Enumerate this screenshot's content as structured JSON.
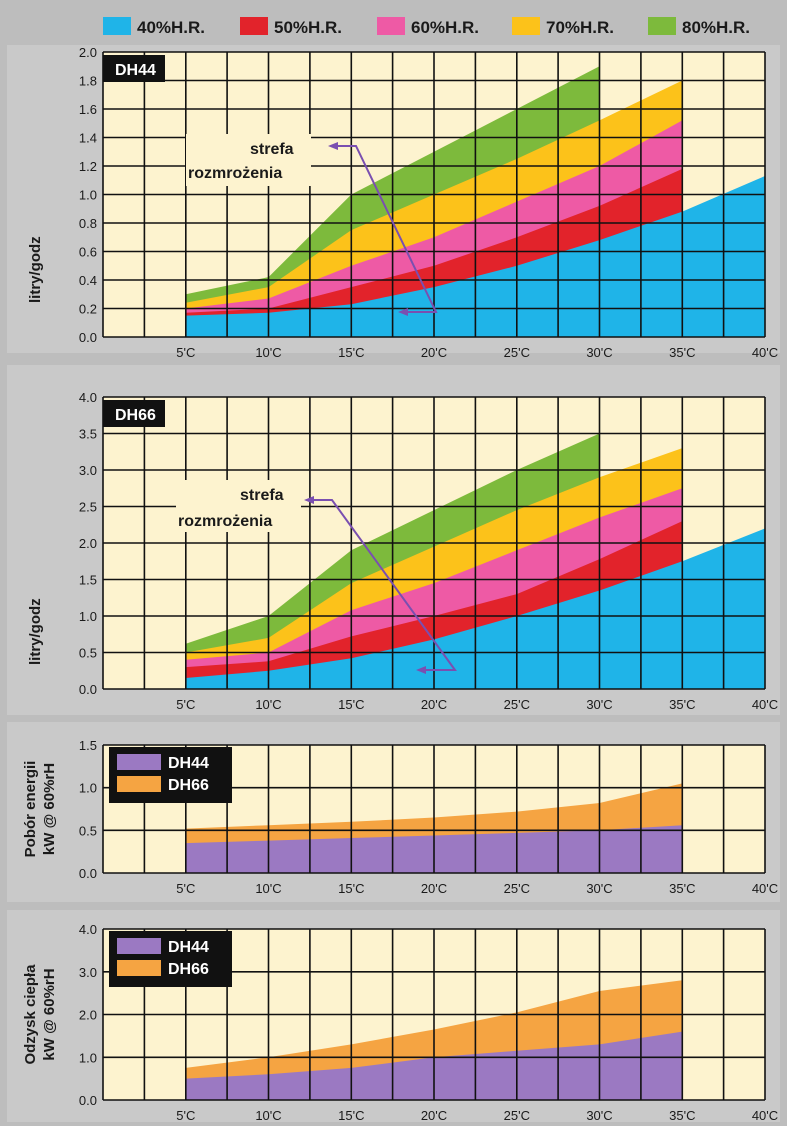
{
  "legend": [
    {
      "label": "40%H.R.",
      "color": "#1fb4e8"
    },
    {
      "label": "50%H.R.",
      "color": "#e2232b"
    },
    {
      "label": "60%H.R.",
      "color": "#ee5aa5"
    },
    {
      "label": "70%H.R.",
      "color": "#fcc21a"
    },
    {
      "label": "80%H.R.",
      "color": "#7dba3c"
    }
  ],
  "annotation": {
    "line1": "strefa",
    "line2": "rozmrożenia"
  },
  "chart_data": [
    {
      "type": "area",
      "badge": "DH44",
      "ylabel": "litry/godz",
      "x": [
        "5'C",
        "10'C",
        "15'C",
        "20'C",
        "25'C",
        "30'C",
        "35'C",
        "40'C"
      ],
      "xlabel": "",
      "ylim": [
        0,
        2.0
      ],
      "yticks": [
        "0.0",
        "0.2",
        "0.4",
        "0.6",
        "0.8",
        "1.0",
        "1.2",
        "1.4",
        "1.6",
        "1.8",
        "2.0"
      ],
      "grid": true,
      "series": [
        {
          "name": "40%H.R.",
          "color": "#1fb4e8",
          "x": [
            5,
            10,
            15,
            20,
            25,
            30,
            35,
            40
          ],
          "values": [
            0.15,
            0.17,
            0.23,
            0.35,
            0.5,
            0.68,
            0.88,
            1.13
          ]
        },
        {
          "name": "50%H.R.",
          "color": "#e2232b",
          "x": [
            5,
            10,
            15,
            20,
            25,
            30,
            35
          ],
          "values": [
            0.17,
            0.2,
            0.35,
            0.5,
            0.7,
            0.92,
            1.18
          ]
        },
        {
          "name": "60%H.R.",
          "color": "#ee5aa5",
          "x": [
            5,
            10,
            15,
            20,
            25,
            30,
            35
          ],
          "values": [
            0.2,
            0.27,
            0.5,
            0.7,
            0.95,
            1.2,
            1.52
          ]
        },
        {
          "name": "70%H.R.",
          "color": "#fcc21a",
          "x": [
            5,
            10,
            15,
            20,
            25,
            30,
            35
          ],
          "values": [
            0.24,
            0.35,
            0.75,
            1.0,
            1.25,
            1.52,
            1.8
          ]
        },
        {
          "name": "80%H.R.",
          "color": "#7dba3c",
          "x": [
            5,
            10,
            15,
            20,
            25,
            30
          ],
          "values": [
            0.3,
            0.42,
            1.0,
            1.3,
            1.6,
            1.9
          ]
        }
      ]
    },
    {
      "type": "area",
      "badge": "DH66",
      "ylabel": "litry/godz",
      "x": [
        "5'C",
        "10'C",
        "15'C",
        "20'C",
        "25'C",
        "30'C",
        "35'C",
        "40'C"
      ],
      "xlabel": "",
      "ylim": [
        0,
        4.0
      ],
      "yticks": [
        "0.0",
        "0.5",
        "1.0",
        "1.5",
        "2.0",
        "2.5",
        "3.0",
        "3.5",
        "4.0"
      ],
      "grid": true,
      "series": [
        {
          "name": "40%H.R.",
          "color": "#1fb4e8",
          "x": [
            5,
            10,
            15,
            20,
            25,
            30,
            35,
            40
          ],
          "values": [
            0.15,
            0.25,
            0.42,
            0.68,
            1.0,
            1.35,
            1.75,
            2.2
          ]
        },
        {
          "name": "50%H.R.",
          "color": "#e2232b",
          "x": [
            5,
            10,
            15,
            20,
            25,
            30,
            35
          ],
          "values": [
            0.3,
            0.38,
            0.72,
            1.0,
            1.3,
            1.78,
            2.3
          ]
        },
        {
          "name": "60%H.R.",
          "color": "#ee5aa5",
          "x": [
            5,
            10,
            15,
            20,
            25,
            30,
            35
          ],
          "values": [
            0.4,
            0.5,
            1.08,
            1.45,
            1.9,
            2.35,
            2.75
          ]
        },
        {
          "name": "70%H.R.",
          "color": "#fcc21a",
          "x": [
            5,
            10,
            15,
            20,
            25,
            30,
            35
          ],
          "values": [
            0.5,
            0.7,
            1.45,
            1.95,
            2.45,
            2.9,
            3.3
          ]
        },
        {
          "name": "80%H.R.",
          "color": "#7dba3c",
          "x": [
            5,
            10,
            15,
            20,
            25,
            30
          ],
          "values": [
            0.62,
            1.0,
            1.9,
            2.45,
            3.0,
            3.5
          ]
        }
      ]
    },
    {
      "type": "area",
      "ylabel_line1": "Pobór energii",
      "ylabel_line2": "kW @ 60%rH",
      "x": [
        "5'C",
        "10'C",
        "15'C",
        "20'C",
        "25'C",
        "30'C",
        "35'C",
        "40'C"
      ],
      "xlabel": "",
      "ylim": [
        0,
        1.5
      ],
      "yticks": [
        "0.0",
        "0.5",
        "1.0",
        "1.5"
      ],
      "grid": true,
      "series": [
        {
          "name": "DH44",
          "color": "#9b79c2",
          "x": [
            5,
            10,
            15,
            20,
            25,
            30,
            35
          ],
          "values": [
            0.35,
            0.38,
            0.41,
            0.44,
            0.47,
            0.5,
            0.56
          ]
        },
        {
          "name": "DH66",
          "color": "#f5a442",
          "x": [
            5,
            10,
            15,
            20,
            25,
            30,
            35
          ],
          "values": [
            0.52,
            0.56,
            0.6,
            0.65,
            0.72,
            0.82,
            1.05
          ]
        }
      ]
    },
    {
      "type": "area",
      "ylabel_line1": "Odzysk ciepła",
      "ylabel_line2": "kW @ 60%rH",
      "x": [
        "5'C",
        "10'C",
        "15'C",
        "20'C",
        "25'C",
        "30'C",
        "35'C",
        "40'C"
      ],
      "xlabel": "",
      "ylim": [
        0,
        4.0
      ],
      "yticks": [
        "0.0",
        "1.0",
        "2.0",
        "3.0",
        "4.0"
      ],
      "grid": true,
      "series": [
        {
          "name": "DH44",
          "color": "#9b79c2",
          "x": [
            5,
            10,
            15,
            20,
            25,
            30,
            35
          ],
          "values": [
            0.5,
            0.6,
            0.75,
            1.0,
            1.15,
            1.3,
            1.6
          ]
        },
        {
          "name": "DH66",
          "color": "#f5a442",
          "x": [
            5,
            10,
            15,
            20,
            25,
            30,
            35
          ],
          "values": [
            0.75,
            1.0,
            1.3,
            1.65,
            2.05,
            2.55,
            2.8
          ]
        }
      ]
    }
  ]
}
